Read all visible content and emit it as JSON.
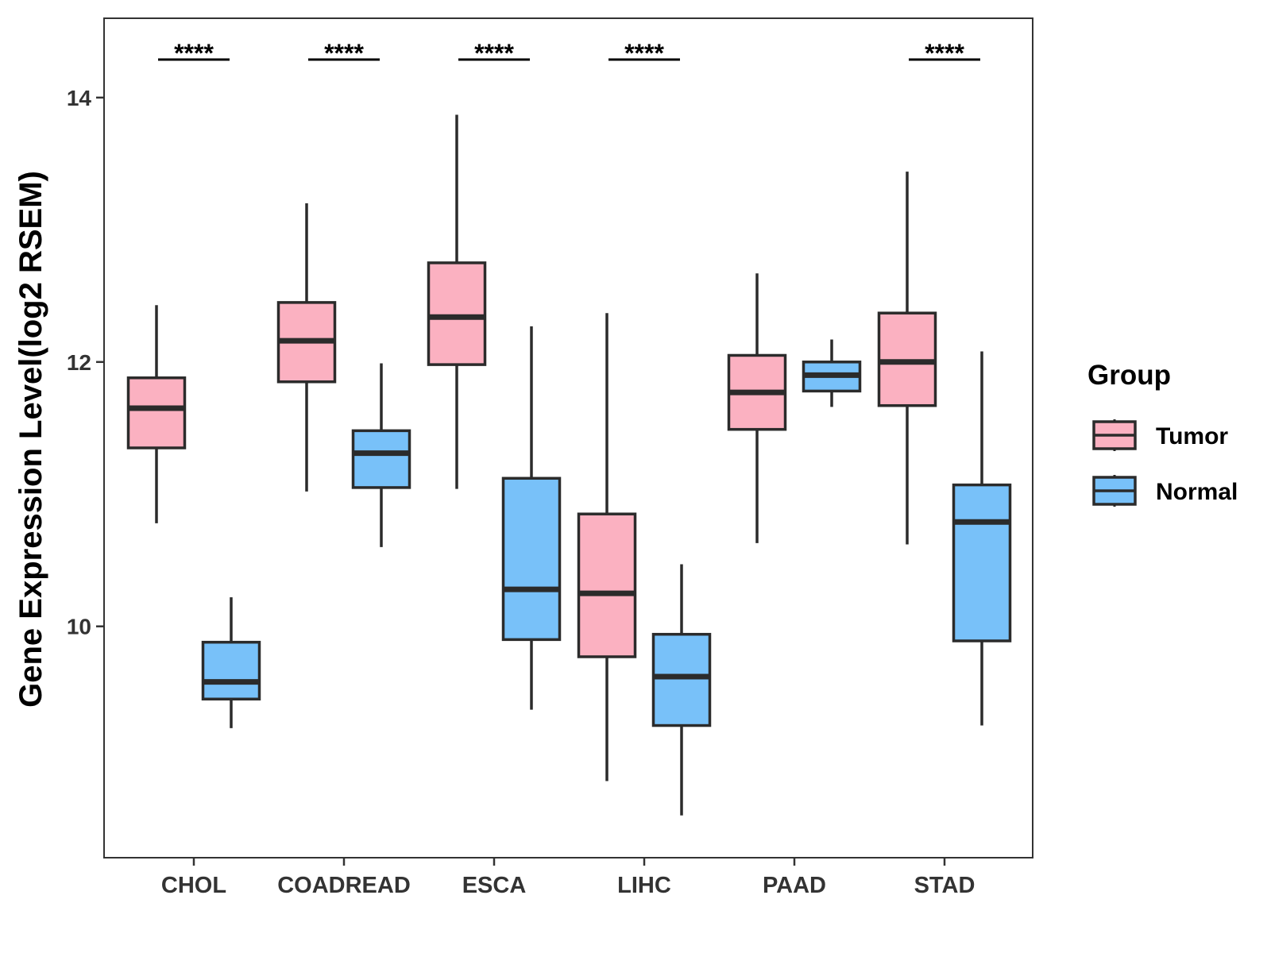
{
  "chart_data": {
    "type": "boxplot",
    "title": "",
    "xlabel": "",
    "ylabel": "Gene Expression Level(log2 RSEM)",
    "ylim": [
      8.25,
      14.6
    ],
    "yticks": [
      10,
      12,
      14
    ],
    "categories": [
      "CHOL",
      "COADREAD",
      "ESCA",
      "LIHC",
      "PAAD",
      "STAD"
    ],
    "legend": {
      "title": "Group",
      "position": "right",
      "entries": [
        {
          "name": "Tumor",
          "color": "#FBB1C1"
        },
        {
          "name": "Normal",
          "color": "#78C1F9"
        }
      ]
    },
    "significance": [
      "****",
      "****",
      "****",
      "****",
      "",
      "****"
    ],
    "series": [
      {
        "name": "Tumor",
        "color": "#FBB1C1",
        "boxes": [
          {
            "whisker_low": 10.78,
            "q1": 11.35,
            "median": 11.65,
            "q3": 11.88,
            "whisker_high": 12.43
          },
          {
            "whisker_low": 11.02,
            "q1": 11.85,
            "median": 12.16,
            "q3": 12.45,
            "whisker_high": 13.2
          },
          {
            "whisker_low": 11.04,
            "q1": 11.98,
            "median": 12.34,
            "q3": 12.75,
            "whisker_high": 13.87
          },
          {
            "whisker_low": 8.83,
            "q1": 9.77,
            "median": 10.25,
            "q3": 10.85,
            "whisker_high": 12.37
          },
          {
            "whisker_low": 10.63,
            "q1": 11.49,
            "median": 11.77,
            "q3": 12.05,
            "whisker_high": 12.67
          },
          {
            "whisker_low": 10.62,
            "q1": 11.67,
            "median": 12.0,
            "q3": 12.37,
            "whisker_high": 13.44
          }
        ]
      },
      {
        "name": "Normal",
        "color": "#78C1F9",
        "boxes": [
          {
            "whisker_low": 9.23,
            "q1": 9.45,
            "median": 9.58,
            "q3": 9.88,
            "whisker_high": 10.22
          },
          {
            "whisker_low": 10.6,
            "q1": 11.05,
            "median": 11.31,
            "q3": 11.48,
            "whisker_high": 11.99
          },
          {
            "whisker_low": 9.37,
            "q1": 9.9,
            "median": 10.28,
            "q3": 11.12,
            "whisker_high": 12.27
          },
          {
            "whisker_low": 8.57,
            "q1": 9.25,
            "median": 9.62,
            "q3": 9.94,
            "whisker_high": 10.47
          },
          {
            "whisker_low": 11.66,
            "q1": 11.78,
            "median": 11.9,
            "q3": 12.0,
            "whisker_high": 12.17
          },
          {
            "whisker_low": 9.25,
            "q1": 9.89,
            "median": 10.79,
            "q3": 11.07,
            "whisker_high": 12.08
          }
        ]
      }
    ]
  }
}
